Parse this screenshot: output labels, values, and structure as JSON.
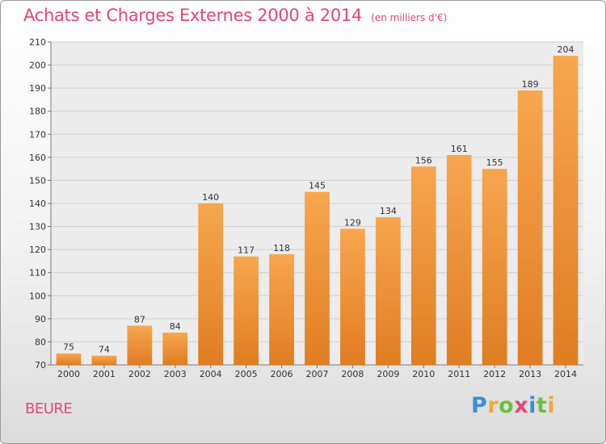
{
  "title": "Achats et Charges Externes 2000 à 2014",
  "subtitle": "(en milliers d'€)",
  "commune": "BEURE",
  "logo": {
    "letters": [
      "P",
      "r",
      "o",
      "x",
      "i",
      "t",
      "i"
    ],
    "colors": [
      "#3b8ed6",
      "#f2a73b",
      "#6cbf3f",
      "#e2477a",
      "#3b8ed6",
      "#6cbf3f",
      "#f2a73b"
    ]
  },
  "colors": {
    "bar_top": "#f7a64f",
    "bar_bottom": "#e07d22",
    "title": "#e2477a"
  },
  "chart_data": {
    "type": "bar",
    "categories": [
      "2000",
      "2001",
      "2002",
      "2003",
      "2004",
      "2005",
      "2006",
      "2007",
      "2008",
      "2009",
      "2010",
      "2011",
      "2012",
      "2013",
      "2014"
    ],
    "values": [
      75,
      74,
      87,
      84,
      140,
      117,
      118,
      145,
      129,
      134,
      156,
      161,
      155,
      189,
      204
    ],
    "ylim": [
      70,
      210
    ],
    "yticks": [
      70,
      80,
      90,
      100,
      110,
      120,
      130,
      140,
      150,
      160,
      170,
      180,
      190,
      200,
      210
    ],
    "grid": true,
    "data_labels": true
  }
}
